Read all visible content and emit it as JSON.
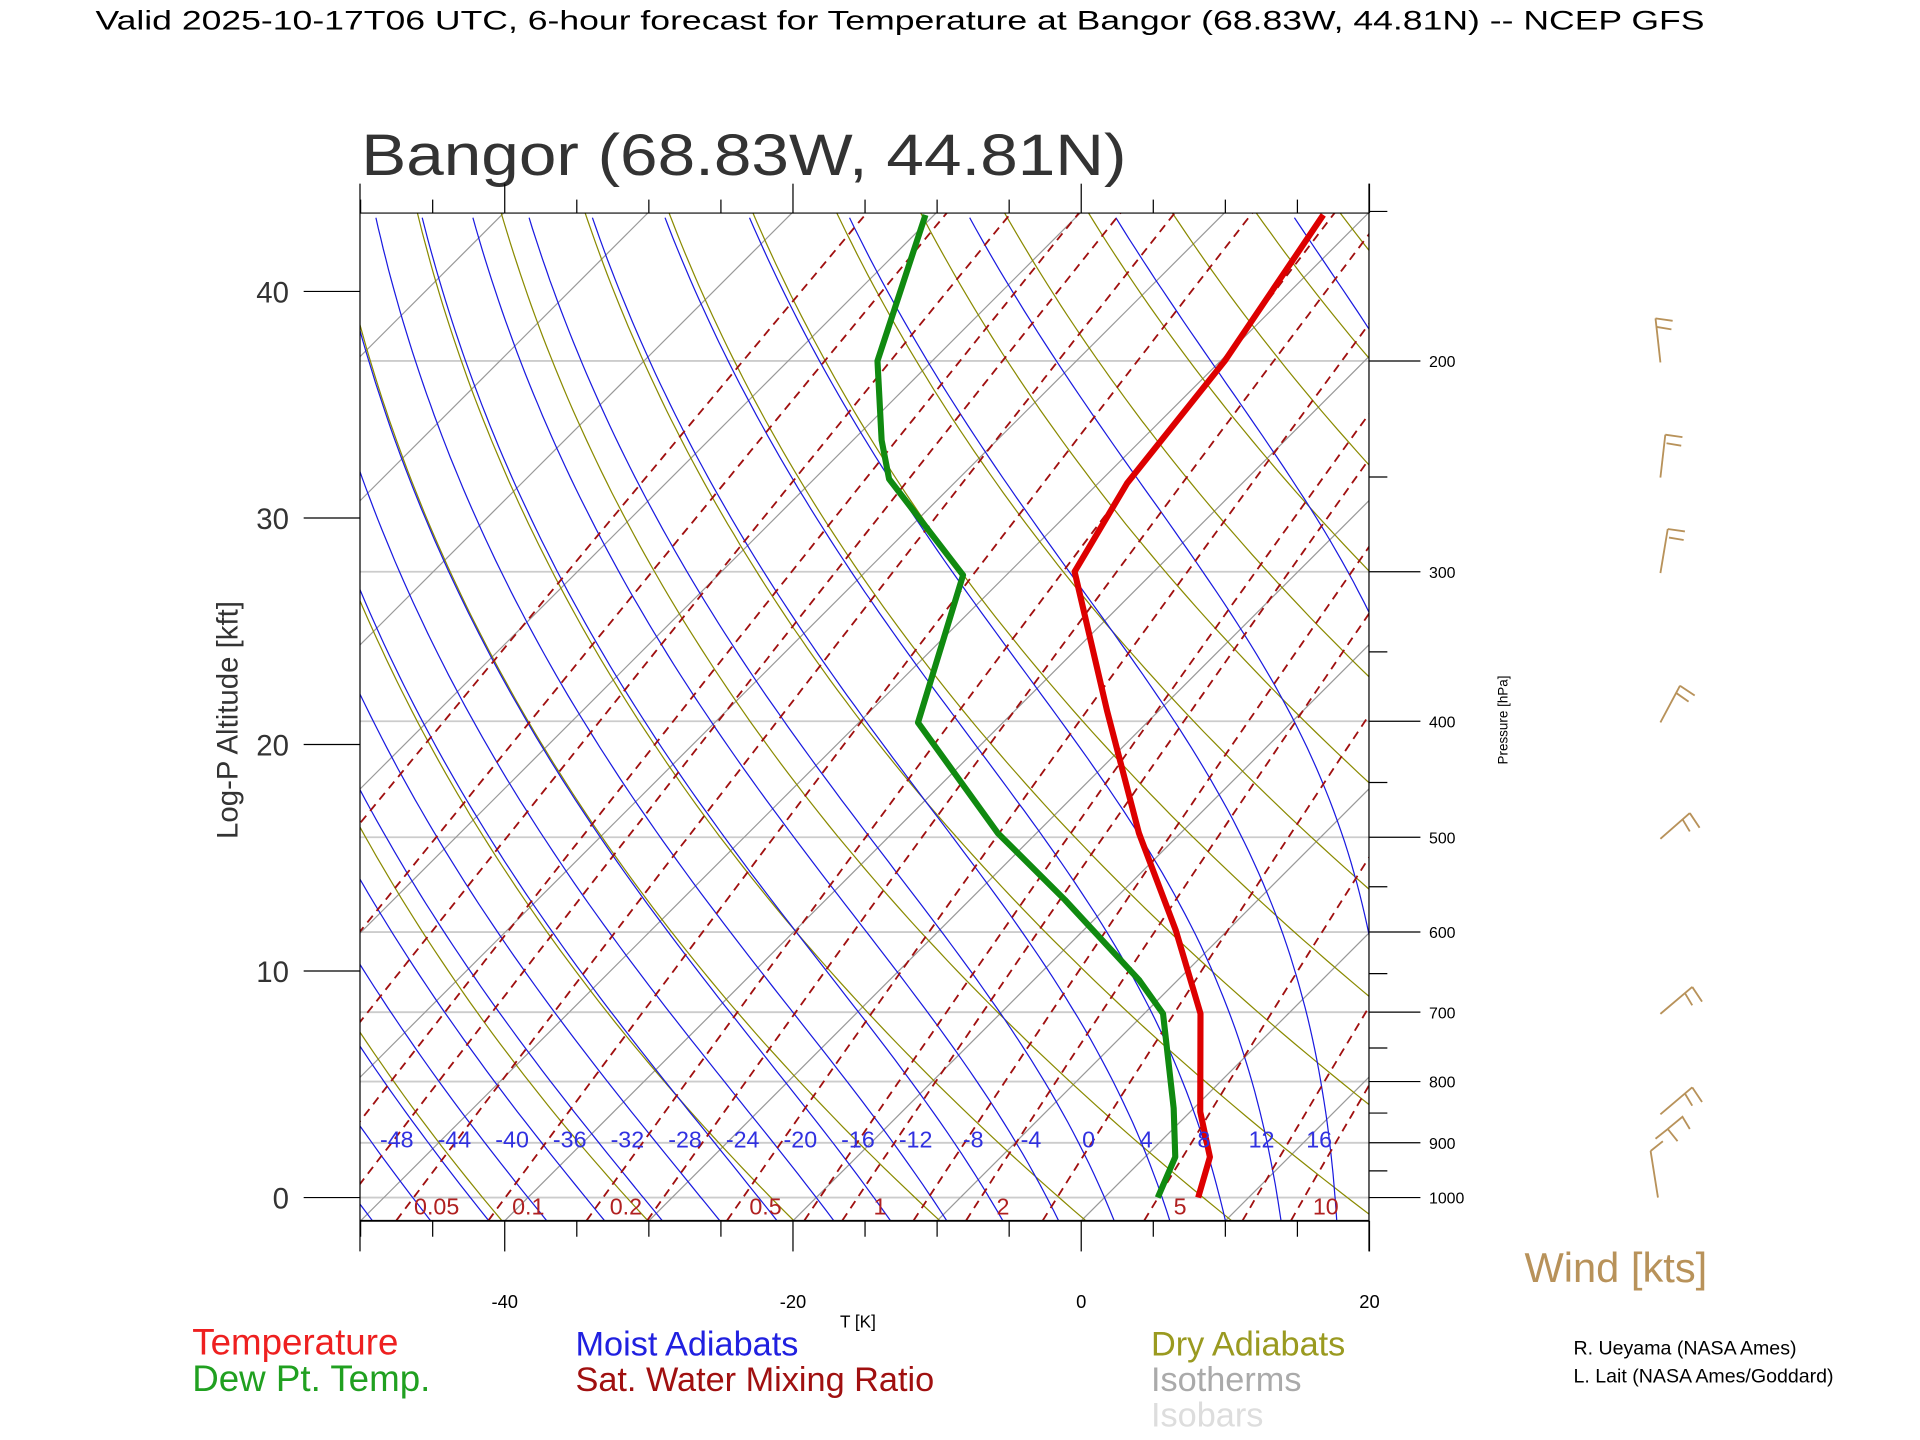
{
  "header": {
    "title": "Valid 2025-10-17T06 UTC, 6-hour forecast for Temperature at Bangor (68.83W, 44.81N) -- NCEP GFS"
  },
  "chart_data": {
    "type": "line",
    "subtype": "skew-T log-P diagram",
    "title": "Bangor (68.83W, 44.81N)",
    "xlabel": "T [K]",
    "ylabel": "Log-P Altitude [kft]",
    "y2label": "Pressure [hPa]",
    "xlim": [
      -50,
      20
    ],
    "ylim_pressure_hpa": [
      1045,
      150
    ],
    "x_ticks": [
      "-40",
      "-20",
      "0",
      "20"
    ],
    "x_tick_values": [
      -40,
      -20,
      0,
      20
    ],
    "y_ticks": [
      "0",
      "10",
      "20",
      "30",
      "40"
    ],
    "y_tick_values_kft": [
      0,
      10,
      20,
      30,
      40
    ],
    "pressure_ticks": [
      "200",
      "300",
      "400",
      "500",
      "600",
      "700",
      "800",
      "900",
      "1000"
    ],
    "pressure_tick_values": [
      200,
      300,
      400,
      500,
      600,
      700,
      800,
      900,
      1000
    ],
    "series": [
      {
        "name": "Temperature",
        "color": "#dd0000",
        "pressure": [
          1000,
          925,
          848,
          702,
          598,
          496,
          392,
          300,
          253,
          200,
          151
        ],
        "values": [
          6.5,
          4.5,
          0.7,
          -6.1,
          -13.6,
          -22.9,
          -33.6,
          -45.5,
          -48.0,
          -49.7,
          -53.0
        ]
      },
      {
        "name": "Dew Pt. Temp.",
        "color": "#108a10",
        "pressure": [
          1000,
          925,
          842,
          702,
          658,
          564,
          496,
          401,
          302,
          251,
          233,
          200,
          151
        ],
        "values": [
          3.7,
          2.1,
          -1.4,
          -8.7,
          -12.7,
          -23.4,
          -32.7,
          -45.9,
          -53.0,
          -64.8,
          -68.0,
          -73.8,
          -80.6
        ]
      }
    ],
    "moist_adiabat_labels": [
      "-48",
      "-44",
      "-40",
      "-36",
      "-32",
      "-28",
      "-24",
      "-20",
      "-16",
      "-12",
      "-8",
      "-4",
      "0",
      "4",
      "8",
      "12",
      "16"
    ],
    "moist_adiabat_values": [
      -48,
      -44,
      -40,
      -36,
      -32,
      -28,
      -24,
      -20,
      -16,
      -12,
      -8,
      -4,
      0,
      4,
      8,
      12,
      16
    ],
    "mixing_ratio_labels": [
      "0.05",
      "0.1",
      "0.2",
      "0.5",
      "1",
      "2",
      "5",
      "10"
    ],
    "mixing_ratio_values": [
      0.05,
      0.1,
      0.2,
      0.5,
      1,
      2,
      5,
      10
    ],
    "mixing_ratio_lines": [
      0.002,
      0.005,
      0.01,
      0.02,
      0.03,
      0.05,
      0.1,
      0.2,
      0.3,
      0.5,
      0.8,
      1,
      1.5,
      2,
      3,
      5,
      8,
      10,
      15,
      20
    ],
    "dry_adiabat_theta_k": [
      230,
      240,
      250,
      260,
      270,
      280,
      290,
      300,
      310,
      320,
      330,
      340,
      350,
      360,
      370,
      380,
      390,
      400,
      410,
      420,
      430,
      440,
      450,
      460
    ],
    "isotherm_step_c": 10,
    "wind": {
      "label": "Wind [kts]",
      "color": "#b8925a",
      "levels_hpa": [
        1000,
        925,
        850,
        700,
        500,
        400,
        300,
        250,
        200
      ]
    },
    "legend": {
      "temperature": "Temperature",
      "dewpoint": "Dew Pt. Temp.",
      "moist": "Moist Adiabats",
      "mixing": "Sat. Water Mixing Ratio",
      "dry": "Dry Adiabats",
      "isotherms": "Isotherms",
      "isobars": "Isobars"
    },
    "colors": {
      "moist": "#1a1ae0",
      "mixing": "#a01010",
      "dry": "#8a8a00",
      "isotherm": "#999999",
      "isobar": "#cccccc",
      "temperature": "#dd0000",
      "dewpoint": "#108a10"
    }
  },
  "credits": [
    "R. Ueyama (NASA Ames)",
    "L. Lait (NASA Ames/Goddard)"
  ]
}
